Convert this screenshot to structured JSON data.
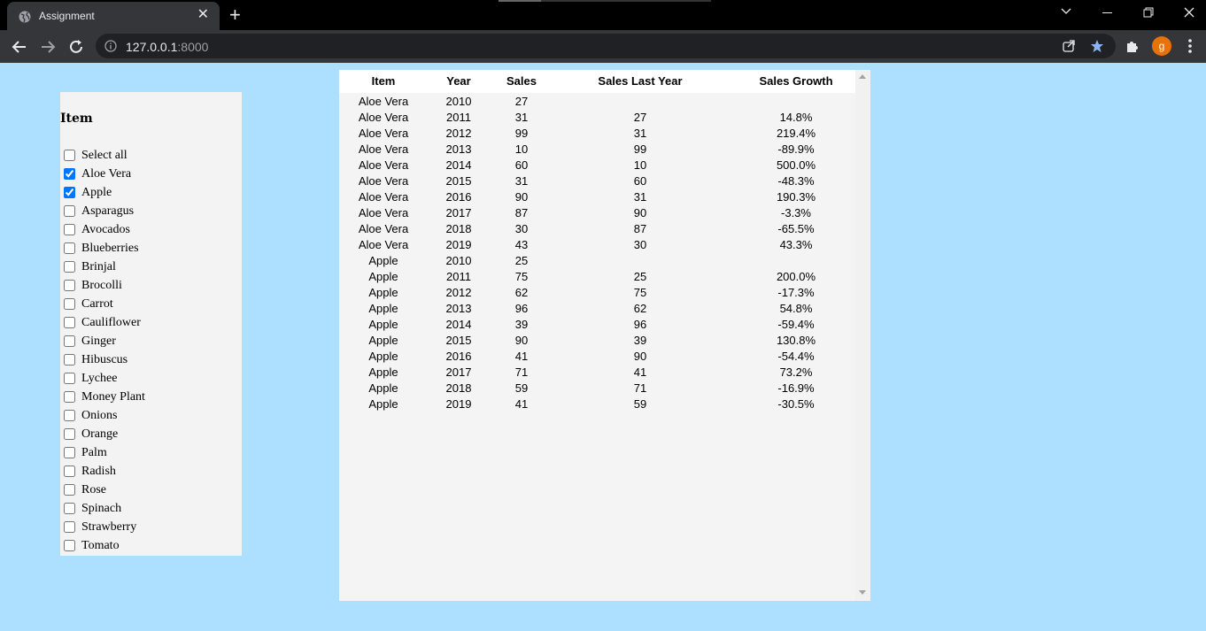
{
  "browser": {
    "tab_title": "Assignment",
    "url_host": "127.0.0.1",
    "url_port": ":8000",
    "profile_initial": "g",
    "icons": [
      "globe-icon",
      "close-icon",
      "plus-icon",
      "back-icon",
      "forward-icon",
      "reload-icon",
      "info-icon",
      "share-icon",
      "star-icon",
      "puzzle-icon",
      "more-vert-icon"
    ]
  },
  "filter": {
    "heading": "Item",
    "options": [
      {
        "label": "Select all",
        "checked": false
      },
      {
        "label": "Aloe Vera",
        "checked": true
      },
      {
        "label": "Apple",
        "checked": true
      },
      {
        "label": "Asparagus",
        "checked": false
      },
      {
        "label": "Avocados",
        "checked": false
      },
      {
        "label": "Blueberries",
        "checked": false
      },
      {
        "label": "Brinjal",
        "checked": false
      },
      {
        "label": "Brocolli",
        "checked": false
      },
      {
        "label": "Carrot",
        "checked": false
      },
      {
        "label": "Cauliflower",
        "checked": false
      },
      {
        "label": "Ginger",
        "checked": false
      },
      {
        "label": "Hibuscus",
        "checked": false
      },
      {
        "label": "Lychee",
        "checked": false
      },
      {
        "label": "Money Plant",
        "checked": false
      },
      {
        "label": "Onions",
        "checked": false
      },
      {
        "label": "Orange",
        "checked": false
      },
      {
        "label": "Palm",
        "checked": false
      },
      {
        "label": "Radish",
        "checked": false
      },
      {
        "label": "Rose",
        "checked": false
      },
      {
        "label": "Spinach",
        "checked": false
      },
      {
        "label": "Strawberry",
        "checked": false
      },
      {
        "label": "Tomato",
        "checked": false
      }
    ]
  },
  "table": {
    "headers": {
      "item": "Item",
      "year": "Year",
      "sales": "Sales",
      "last": "Sales Last Year",
      "growth": "Sales Growth"
    },
    "rows": [
      [
        "Aloe Vera",
        "2010",
        "27",
        "",
        ""
      ],
      [
        "Aloe Vera",
        "2011",
        "31",
        "27",
        "14.8%"
      ],
      [
        "Aloe Vera",
        "2012",
        "99",
        "31",
        "219.4%"
      ],
      [
        "Aloe Vera",
        "2013",
        "10",
        "99",
        "-89.9%"
      ],
      [
        "Aloe Vera",
        "2014",
        "60",
        "10",
        "500.0%"
      ],
      [
        "Aloe Vera",
        "2015",
        "31",
        "60",
        "-48.3%"
      ],
      [
        "Aloe Vera",
        "2016",
        "90",
        "31",
        "190.3%"
      ],
      [
        "Aloe Vera",
        "2017",
        "87",
        "90",
        "-3.3%"
      ],
      [
        "Aloe Vera",
        "2018",
        "30",
        "87",
        "-65.5%"
      ],
      [
        "Aloe Vera",
        "2019",
        "43",
        "30",
        "43.3%"
      ],
      [
        "Apple",
        "2010",
        "25",
        "",
        ""
      ],
      [
        "Apple",
        "2011",
        "75",
        "25",
        "200.0%"
      ],
      [
        "Apple",
        "2012",
        "62",
        "75",
        "-17.3%"
      ],
      [
        "Apple",
        "2013",
        "96",
        "62",
        "54.8%"
      ],
      [
        "Apple",
        "2014",
        "39",
        "96",
        "-59.4%"
      ],
      [
        "Apple",
        "2015",
        "90",
        "39",
        "130.8%"
      ],
      [
        "Apple",
        "2016",
        "41",
        "90",
        "-54.4%"
      ],
      [
        "Apple",
        "2017",
        "71",
        "41",
        "73.2%"
      ],
      [
        "Apple",
        "2018",
        "59",
        "71",
        "-16.9%"
      ],
      [
        "Apple",
        "2019",
        "41",
        "59",
        "-30.5%"
      ]
    ]
  }
}
